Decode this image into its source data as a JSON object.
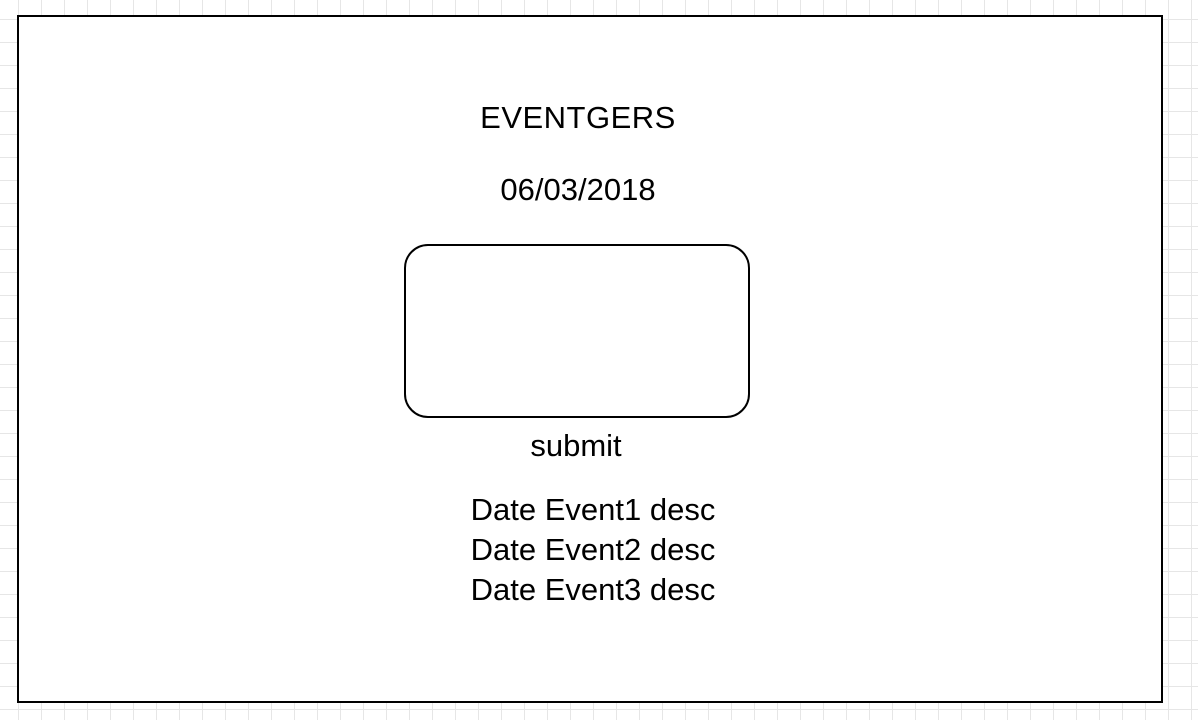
{
  "wireframe": {
    "app_title": "EVENTGERS",
    "date": "06/03/2018",
    "submit_label": "submit",
    "events": [
      "Date Event1 desc",
      "Date Event2 desc",
      "Date Event3 desc"
    ]
  }
}
